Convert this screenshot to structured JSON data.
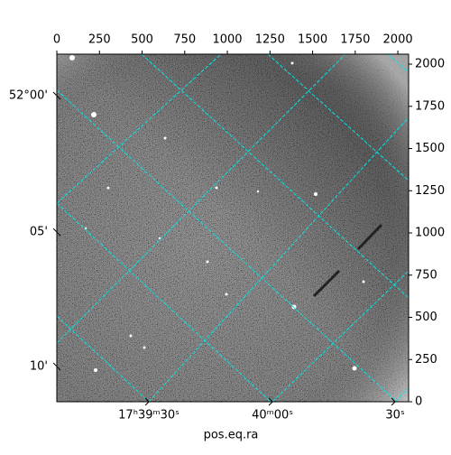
{
  "chart_data": {
    "type": "image",
    "xlim": [
      0,
      2063
    ],
    "ylim": [
      0,
      2059
    ],
    "xticks": [
      0,
      250,
      500,
      750,
      1000,
      1250,
      1500,
      1750,
      2000
    ],
    "yticks": [
      0,
      250,
      500,
      750,
      1000,
      1250,
      1500,
      1750,
      2000
    ],
    "ra_ticks": [
      {
        "value": 540,
        "label": "17ʰ39ᵐ30ˢ"
      },
      {
        "value": 1265,
        "label": "40ᵐ00ˢ"
      },
      {
        "value": 1984,
        "label": "30ˢ"
      }
    ],
    "dec_ticks": [
      {
        "value": 1813,
        "label": "52°00'"
      },
      {
        "value": 1005,
        "label": "05'"
      },
      {
        "value": 209,
        "label": "10'"
      }
    ],
    "xlabel": "pos.eq.ra",
    "grid_color": "#00e5e5"
  }
}
